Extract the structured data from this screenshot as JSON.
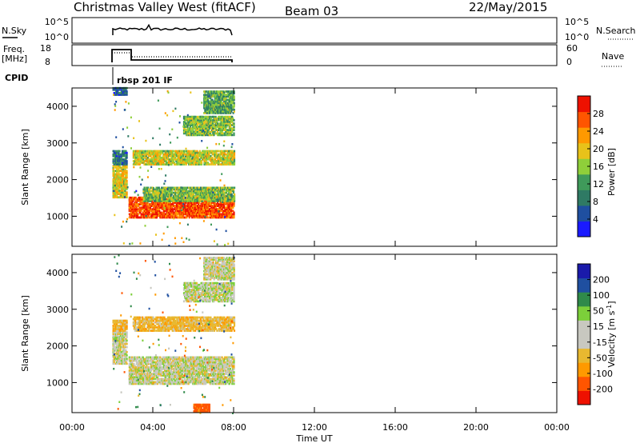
{
  "header": {
    "station": "Christmas Valley West (fitACF)",
    "beam": "Beam 03",
    "date": "22/May/2015"
  },
  "strips": {
    "nsky_label": "N.Sky",
    "nsky_ticks": [
      "10^5",
      "10^0"
    ],
    "nsearch_label": "N.Search",
    "freq_label": "Freq.",
    "freq_unit": "[MHz]",
    "freq_ticks": [
      "18",
      "8"
    ],
    "nave_ticks": [
      "60",
      "0"
    ],
    "nave_label": "Nave",
    "cpid_label": "CPID",
    "cpid_value": "rbsp 201 IF"
  },
  "colors": {
    "power": [
      "#1a1aff",
      "#1f4fa0",
      "#2f7a64",
      "#3f9a5a",
      "#8fcf3a",
      "#e8c21a",
      "#ff9900",
      "#ff5500",
      "#ee1100"
    ],
    "velocity": [
      "#ee1100",
      "#ff5500",
      "#ff9900",
      "#e8b830",
      "#c8c8c0",
      "#c8c8c0",
      "#7ccf3a",
      "#2f8a4a",
      "#1f4fa0",
      "#1a1aaa"
    ]
  },
  "chart_data": [
    {
      "type": "heatmap",
      "name": "power",
      "xlabel": "Time UT",
      "ylabel": "Slant Range [km]",
      "x_ticks": [
        "00:00",
        "04:00",
        "08:00",
        "12:00",
        "16:00",
        "20:00",
        "00:00"
      ],
      "xlim_hours": [
        0,
        24
      ],
      "ylim_km": [
        180,
        4500
      ],
      "y_ticks": [
        1000,
        2000,
        3000,
        4000
      ],
      "colorbar_label": "Power [dB]",
      "colorbar_ticks": [
        "4",
        "8",
        "12",
        "16",
        "20",
        "24",
        "28"
      ],
      "colorbar_range": [
        0,
        30
      ],
      "data_time_range_hours": [
        2.0,
        8.0
      ],
      "bands": [
        {
          "t": [
            2.0,
            2.7
          ],
          "r": [
            1500,
            2400
          ],
          "level": 18
        },
        {
          "t": [
            2.0,
            2.7
          ],
          "r": [
            2400,
            2800
          ],
          "level": 8
        },
        {
          "t": [
            2.0,
            2.7
          ],
          "r": [
            4300,
            4500
          ],
          "level": 6
        },
        {
          "t": [
            2.8,
            8.0
          ],
          "r": [
            950,
            1500
          ],
          "level": 26
        },
        {
          "t": [
            3.5,
            8.0
          ],
          "r": [
            1400,
            1800
          ],
          "level": 14
        },
        {
          "t": [
            3.0,
            8.0
          ],
          "r": [
            2400,
            2800
          ],
          "level": 17
        },
        {
          "t": [
            5.5,
            8.0
          ],
          "r": [
            3200,
            3700
          ],
          "level": 14
        },
        {
          "t": [
            6.5,
            8.0
          ],
          "r": [
            3800,
            4400
          ],
          "level": 12
        }
      ]
    },
    {
      "type": "heatmap",
      "name": "velocity",
      "xlabel": "Time UT",
      "ylabel": "Slant Range [km]",
      "x_ticks": [
        "00:00",
        "04:00",
        "08:00",
        "12:00",
        "16:00",
        "20:00",
        "00:00"
      ],
      "xlim_hours": [
        0,
        24
      ],
      "ylim_km": [
        180,
        4500
      ],
      "y_ticks": [
        1000,
        2000,
        3000,
        4000
      ],
      "colorbar_label": "Velocity [m s^-1]",
      "colorbar_ticks": [
        "200",
        "100",
        "50",
        "15",
        "-15",
        "-50",
        "-100",
        "-200"
      ],
      "colorbar_range": [
        -250,
        250
      ],
      "data_time_range_hours": [
        2.0,
        8.0
      ],
      "bands": [
        {
          "t": [
            2.0,
            2.7
          ],
          "r": [
            1500,
            2400
          ],
          "level": 0
        },
        {
          "t": [
            2.0,
            2.7
          ],
          "r": [
            2400,
            2700
          ],
          "level": -40
        },
        {
          "t": [
            2.8,
            8.0
          ],
          "r": [
            950,
            1700
          ],
          "level": 0
        },
        {
          "t": [
            3.0,
            8.0
          ],
          "r": [
            2400,
            2800
          ],
          "level": -35
        },
        {
          "t": [
            5.5,
            8.0
          ],
          "r": [
            3200,
            3700
          ],
          "level": 5
        },
        {
          "t": [
            6.5,
            8.0
          ],
          "r": [
            3800,
            4400
          ],
          "level": 0
        },
        {
          "t": [
            6.0,
            6.8
          ],
          "r": [
            200,
            400
          ],
          "level": -120
        }
      ]
    }
  ]
}
